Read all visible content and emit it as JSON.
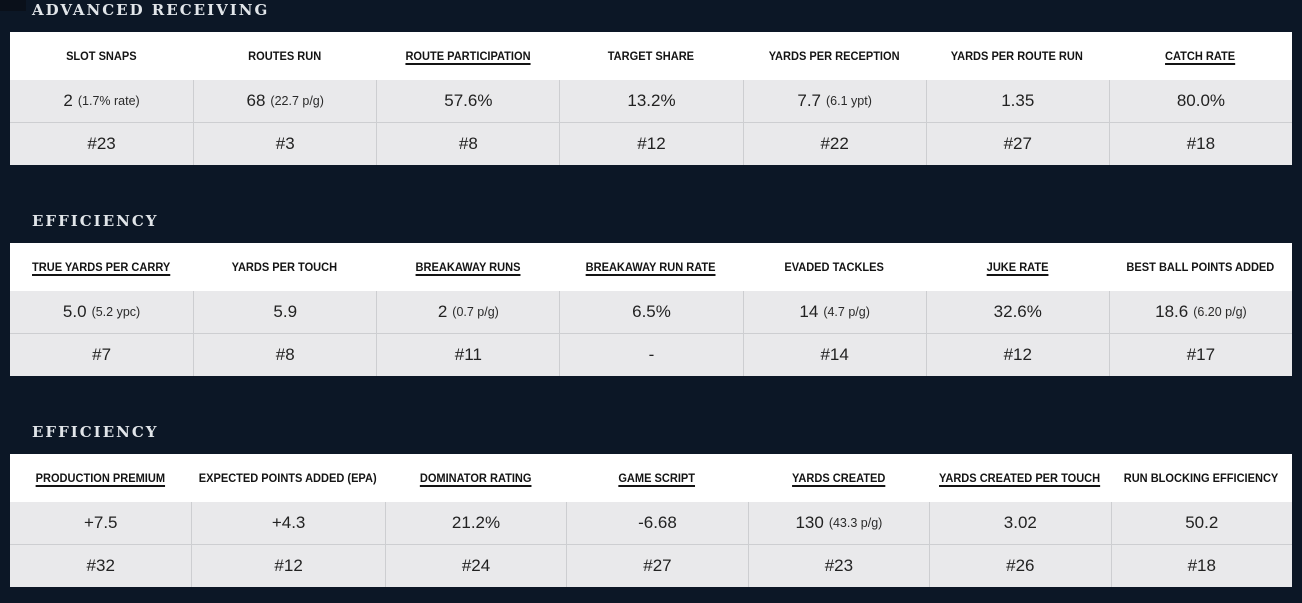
{
  "page": {
    "background": "#0c1726",
    "table_header_bg": "#ffffff",
    "table_row_bg": "#e9e9eb",
    "cell_border": "#cdced1",
    "heading_text_color": "#e1e5e9",
    "cell_text_color": "#222222"
  },
  "sections": [
    {
      "title": "ADVANCED RECEIVING",
      "columns": [
        {
          "label": "SLOT SNAPS",
          "link": false,
          "value": "2",
          "note": "(1.7% rate)",
          "rank": "#23"
        },
        {
          "label": "ROUTES RUN",
          "link": false,
          "value": "68",
          "note": "(22.7 p/g)",
          "rank": "#3"
        },
        {
          "label": "ROUTE PARTICIPATION",
          "link": true,
          "value": "57.6%",
          "note": "",
          "rank": "#8"
        },
        {
          "label": "TARGET SHARE",
          "link": false,
          "value": "13.2%",
          "note": "",
          "rank": "#12"
        },
        {
          "label": "YARDS PER RECEPTION",
          "link": false,
          "value": "7.7",
          "note": "(6.1 ypt)",
          "rank": "#22"
        },
        {
          "label": "YARDS PER ROUTE RUN",
          "link": false,
          "value": "1.35",
          "note": "",
          "rank": "#27"
        },
        {
          "label": "CATCH RATE",
          "link": true,
          "value": "80.0%",
          "note": "",
          "rank": "#18"
        }
      ]
    },
    {
      "title": "EFFICIENCY",
      "columns": [
        {
          "label": "TRUE YARDS PER CARRY",
          "link": true,
          "value": "5.0",
          "note": "(5.2 ypc)",
          "rank": "#7"
        },
        {
          "label": "YARDS PER TOUCH",
          "link": false,
          "value": "5.9",
          "note": "",
          "rank": "#8"
        },
        {
          "label": "BREAKAWAY RUNS",
          "link": true,
          "value": "2",
          "note": "(0.7 p/g)",
          "rank": "#11"
        },
        {
          "label": "BREAKAWAY RUN RATE",
          "link": true,
          "value": "6.5%",
          "note": "",
          "rank": "-"
        },
        {
          "label": "EVADED TACKLES",
          "link": false,
          "value": "14",
          "note": "(4.7 p/g)",
          "rank": "#14"
        },
        {
          "label": "JUKE RATE",
          "link": true,
          "value": "32.6%",
          "note": "",
          "rank": "#12"
        },
        {
          "label": "BEST BALL POINTS ADDED",
          "link": false,
          "value": "18.6",
          "note": "(6.20 p/g)",
          "rank": "#17"
        }
      ]
    },
    {
      "title": "EFFICIENCY",
      "columns": [
        {
          "label": "PRODUCTION PREMIUM",
          "link": true,
          "value": "+7.5",
          "note": "",
          "rank": "#32"
        },
        {
          "label": "EXPECTED POINTS ADDED (EPA)",
          "link": false,
          "value": "+4.3",
          "note": "",
          "rank": "#12"
        },
        {
          "label": "DOMINATOR RATING",
          "link": true,
          "value": "21.2%",
          "note": "",
          "rank": "#24"
        },
        {
          "label": "GAME SCRIPT",
          "link": true,
          "value": "-6.68",
          "note": "",
          "rank": "#27"
        },
        {
          "label": "YARDS CREATED",
          "link": true,
          "value": "130",
          "note": "(43.3 p/g)",
          "rank": "#23"
        },
        {
          "label": "YARDS CREATED PER TOUCH",
          "link": true,
          "value": "3.02",
          "note": "",
          "rank": "#26"
        },
        {
          "label": "RUN BLOCKING EFFICIENCY",
          "link": false,
          "value": "50.2",
          "note": "",
          "rank": "#18"
        }
      ]
    }
  ]
}
